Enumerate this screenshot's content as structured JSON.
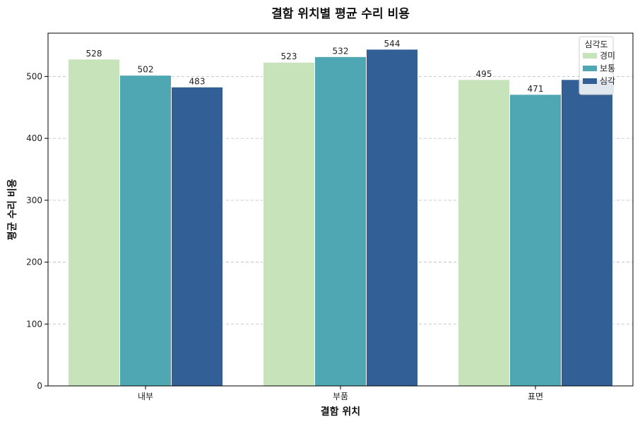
{
  "chart_data": {
    "type": "bar",
    "title": "결함 위치별 평균 수리 비용",
    "xlabel": "결함 위치",
    "ylabel": "평균 수리 비용",
    "categories": [
      "내부",
      "부품",
      "표면"
    ],
    "series": [
      {
        "name": "경미",
        "values": [
          528,
          523,
          495
        ],
        "color": "#c7e3b9"
      },
      {
        "name": "보통",
        "values": [
          502,
          532,
          471
        ],
        "color": "#4fa7b3"
      },
      {
        "name": "심각",
        "values": [
          483,
          544,
          495
        ],
        "color": "#315f96"
      }
    ],
    "data_labels": [
      [
        "528",
        "523",
        "495"
      ],
      [
        "502",
        "532",
        "471"
      ],
      [
        "483",
        "544",
        ""
      ]
    ],
    "ylim": [
      0,
      570
    ],
    "yticks": [
      0,
      100,
      200,
      300,
      400,
      500
    ],
    "grid": "horizontal-dashed",
    "legend": {
      "title": "심각도",
      "placement": "top-right"
    }
  }
}
